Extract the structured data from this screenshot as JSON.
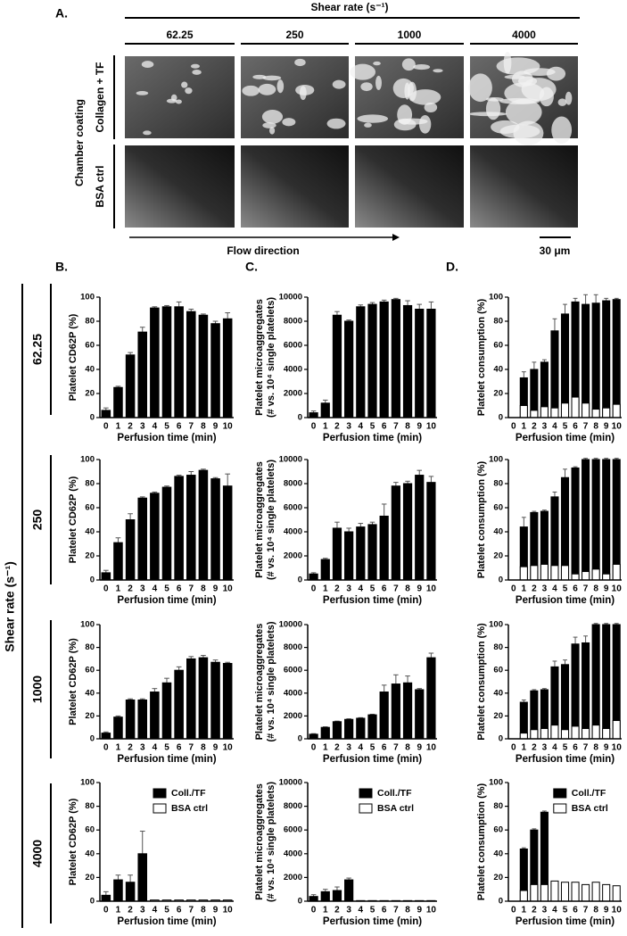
{
  "panel_a": {
    "label": "A.",
    "axis_title": "Shear rate (s⁻¹)",
    "columns": [
      "62.25",
      "250",
      "1000",
      "4000"
    ],
    "row_group": "Chamber coating",
    "rows": [
      "Collagen + TF",
      "BSA ctrl"
    ],
    "flow": "Flow direction",
    "scale_bar": "30 μm"
  },
  "panel_labels": [
    "B.",
    "C.",
    "D."
  ],
  "shear_axis": {
    "title": "Shear rate (s⁻¹)",
    "rows": [
      "62.25",
      "250",
      "1000",
      "4000"
    ]
  },
  "chart_data": [
    {
      "type": "bar",
      "ylabel": "Platelet CD62P (%)",
      "xlabel": "Perfusion time (min)",
      "categories": [
        "0",
        "1",
        "2",
        "3",
        "4",
        "5",
        "6",
        "7",
        "8",
        "9",
        "10"
      ],
      "ylim": [
        0,
        100
      ],
      "yticks": [
        0,
        20,
        40,
        60,
        80,
        100
      ],
      "series": [
        {
          "color": "#000000",
          "values": [
            6,
            25,
            52,
            71,
            91,
            92,
            92,
            88,
            85,
            78,
            82
          ],
          "errors": [
            2,
            1,
            2,
            4,
            1,
            1,
            4,
            2,
            1,
            2,
            5
          ]
        }
      ]
    },
    {
      "type": "bar",
      "ylabel": [
        "Platelet microaggregates",
        "(# vs. 10⁴ single platelets)"
      ],
      "xlabel": "Perfusion time (min)",
      "categories": [
        "0",
        "1",
        "2",
        "3",
        "4",
        "5",
        "6",
        "7",
        "8",
        "9",
        "10"
      ],
      "ylim": [
        0,
        10000
      ],
      "yticks": [
        0,
        2000,
        4000,
        6000,
        8000,
        10000
      ],
      "series": [
        {
          "color": "#000000",
          "values": [
            400,
            1200,
            8500,
            8000,
            9200,
            9400,
            9600,
            9800,
            9300,
            9000,
            9000
          ],
          "errors": [
            150,
            250,
            300,
            100,
            150,
            150,
            150,
            100,
            400,
            400,
            600
          ]
        }
      ]
    },
    {
      "type": "bar",
      "ylabel": "Platelet consumption (%)",
      "xlabel": "Perfusion time (min)",
      "categories": [
        "0",
        "1",
        "2",
        "3",
        "4",
        "5",
        "6",
        "7",
        "8",
        "9",
        "10"
      ],
      "ylim": [
        0,
        100
      ],
      "yticks": [
        0,
        20,
        40,
        60,
        80,
        100
      ],
      "series": [
        {
          "color": "#000000",
          "values": [
            null,
            33,
            40,
            46,
            72,
            86,
            96,
            94,
            95,
            97,
            98
          ],
          "errors": [
            null,
            5,
            6,
            2,
            10,
            8,
            3,
            8,
            7,
            2,
            1
          ]
        },
        {
          "color": "#ffffff",
          "values": [
            null,
            10,
            6,
            9,
            8,
            12,
            17,
            12,
            7,
            8,
            11
          ]
        }
      ]
    },
    {
      "type": "bar",
      "ylabel": "Platelet CD62P (%)",
      "xlabel": "Perfusion time (min)",
      "categories": [
        "0",
        "1",
        "2",
        "3",
        "4",
        "5",
        "6",
        "7",
        "8",
        "9",
        "10"
      ],
      "ylim": [
        0,
        100
      ],
      "yticks": [
        0,
        20,
        40,
        60,
        80,
        100
      ],
      "series": [
        {
          "color": "#000000",
          "values": [
            6,
            31,
            50,
            68,
            72,
            77,
            86,
            87,
            91,
            84,
            78
          ],
          "errors": [
            2,
            4,
            5,
            1,
            1,
            1,
            1,
            3,
            1,
            1,
            10
          ]
        }
      ]
    },
    {
      "type": "bar",
      "ylabel": [
        "Platelet microaggregates",
        "(# vs. 10⁴ single platelets)"
      ],
      "xlabel": "Perfusion time (min)",
      "categories": [
        "0",
        "1",
        "2",
        "3",
        "4",
        "5",
        "6",
        "7",
        "8",
        "9",
        "10"
      ],
      "ylim": [
        0,
        10000
      ],
      "yticks": [
        0,
        2000,
        4000,
        6000,
        8000,
        10000
      ],
      "series": [
        {
          "color": "#000000",
          "values": [
            500,
            1700,
            4300,
            4000,
            4400,
            4600,
            5300,
            7800,
            8000,
            8700,
            8100
          ],
          "errors": [
            100,
            100,
            500,
            300,
            300,
            200,
            1000,
            300,
            200,
            400,
            500
          ]
        }
      ]
    },
    {
      "type": "bar",
      "ylabel": "Platelet consumption (%)",
      "xlabel": "Perfusion time (min)",
      "categories": [
        "0",
        "1",
        "2",
        "3",
        "4",
        "5",
        "6",
        "7",
        "8",
        "9",
        "10"
      ],
      "ylim": [
        0,
        100
      ],
      "yticks": [
        0,
        20,
        40,
        60,
        80,
        100
      ],
      "series": [
        {
          "color": "#000000",
          "values": [
            null,
            44,
            56,
            57,
            69,
            85,
            93,
            100,
            100,
            100,
            100
          ],
          "errors": [
            null,
            8,
            1,
            1,
            4,
            7,
            1,
            1,
            1,
            1,
            1
          ]
        },
        {
          "color": "#ffffff",
          "values": [
            null,
            11,
            12,
            13,
            12,
            12,
            5,
            7,
            9,
            5,
            13
          ]
        }
      ]
    },
    {
      "type": "bar",
      "ylabel": "Platelet CD62P (%)",
      "xlabel": "Perfusion time (min)",
      "categories": [
        "0",
        "1",
        "2",
        "3",
        "4",
        "5",
        "6",
        "7",
        "8",
        "9",
        "10"
      ],
      "ylim": [
        0,
        100
      ],
      "yticks": [
        0,
        20,
        40,
        60,
        80,
        100
      ],
      "series": [
        {
          "color": "#000000",
          "values": [
            5,
            19,
            34,
            34,
            41,
            49,
            60,
            70,
            71,
            67,
            66
          ],
          "errors": [
            1,
            1,
            1,
            1,
            3,
            4,
            3,
            2,
            2,
            2,
            1
          ]
        }
      ]
    },
    {
      "type": "bar",
      "ylabel": [
        "Platelet microaggregates",
        "(# vs. 10⁴ single platelets)"
      ],
      "xlabel": "Perfusion time (min)",
      "categories": [
        "0",
        "1",
        "2",
        "3",
        "4",
        "5",
        "6",
        "7",
        "8",
        "9",
        "10"
      ],
      "ylim": [
        0,
        10000
      ],
      "yticks": [
        0,
        2000,
        4000,
        6000,
        8000,
        10000
      ],
      "series": [
        {
          "color": "#000000",
          "values": [
            400,
            1000,
            1500,
            1700,
            1800,
            2100,
            4100,
            4800,
            4900,
            4300,
            7100
          ],
          "errors": [
            50,
            50,
            50,
            50,
            50,
            50,
            600,
            800,
            600,
            100,
            400
          ]
        }
      ]
    },
    {
      "type": "bar",
      "ylabel": "Platelet consumption (%)",
      "xlabel": "Perfusion time (min)",
      "categories": [
        "0",
        "1",
        "2",
        "3",
        "4",
        "5",
        "6",
        "7",
        "8",
        "9",
        "10"
      ],
      "ylim": [
        0,
        100
      ],
      "yticks": [
        0,
        20,
        40,
        60,
        80,
        100
      ],
      "series": [
        {
          "color": "#000000",
          "values": [
            null,
            32,
            42,
            43,
            63,
            65,
            83,
            84,
            100,
            100,
            100
          ],
          "errors": [
            null,
            2,
            1,
            1,
            5,
            4,
            6,
            6,
            1,
            1,
            1
          ]
        },
        {
          "color": "#ffffff",
          "values": [
            null,
            5,
            8,
            9,
            12,
            8,
            11,
            9,
            12,
            9,
            16
          ]
        }
      ]
    },
    {
      "type": "bar",
      "ylabel": "Platelet CD62P (%)",
      "xlabel": "Perfusion time (min)",
      "categories": [
        "0",
        "1",
        "2",
        "3",
        "4",
        "5",
        "6",
        "7",
        "8",
        "9",
        "10"
      ],
      "ylim": [
        0,
        100
      ],
      "yticks": [
        0,
        20,
        40,
        60,
        80,
        100
      ],
      "legend": "upper right",
      "series": [
        {
          "name": "Coll./TF",
          "color": "#000000",
          "values": [
            5,
            18,
            16,
            40,
            null,
            null,
            null,
            null,
            null,
            null,
            null
          ],
          "errors": [
            3,
            4,
            6,
            19,
            null,
            null,
            null,
            null,
            null,
            null,
            null
          ]
        },
        {
          "name": "BSA ctrl",
          "color": "#ffffff",
          "values": [
            null,
            null,
            null,
            null,
            1,
            1,
            1,
            1,
            1,
            1,
            1
          ]
        }
      ]
    },
    {
      "type": "bar",
      "ylabel": [
        "Platelet microaggregates",
        "(# vs. 10⁴ single platelets)"
      ],
      "xlabel": "Perfusion time (min)",
      "categories": [
        "0",
        "1",
        "2",
        "3",
        "4",
        "5",
        "6",
        "7",
        "8",
        "9",
        "10"
      ],
      "ylim": [
        0,
        10000
      ],
      "yticks": [
        0,
        2000,
        4000,
        6000,
        8000,
        10000
      ],
      "legend": "upper right",
      "series": [
        {
          "name": "Coll./TF",
          "color": "#000000",
          "values": [
            400,
            800,
            900,
            1800,
            null,
            null,
            null,
            null,
            null,
            null,
            null
          ],
          "errors": [
            150,
            200,
            300,
            150,
            null,
            null,
            null,
            null,
            null,
            null,
            null
          ]
        },
        {
          "name": "BSA ctrl",
          "color": "#ffffff",
          "values": [
            null,
            null,
            null,
            null,
            50,
            50,
            50,
            50,
            50,
            50,
            50
          ]
        }
      ]
    },
    {
      "type": "bar",
      "ylabel": "Platelet consumption (%)",
      "xlabel": "Perfusion time (min)",
      "categories": [
        "0",
        "1",
        "2",
        "3",
        "4",
        "5",
        "6",
        "7",
        "8",
        "9",
        "10"
      ],
      "ylim": [
        0,
        100
      ],
      "yticks": [
        0,
        20,
        40,
        60,
        80,
        100
      ],
      "legend": "upper right",
      "series": [
        {
          "name": "Coll./TF",
          "color": "#000000",
          "values": [
            null,
            44,
            60,
            75,
            null,
            null,
            null,
            null,
            null,
            null,
            null
          ],
          "errors": [
            null,
            1,
            1,
            1,
            null,
            null,
            null,
            null,
            null,
            null,
            null
          ]
        },
        {
          "name": "BSA ctrl",
          "color": "#ffffff",
          "values": [
            null,
            9,
            14,
            14,
            17,
            16,
            16,
            14,
            16,
            14,
            13
          ]
        }
      ]
    }
  ]
}
